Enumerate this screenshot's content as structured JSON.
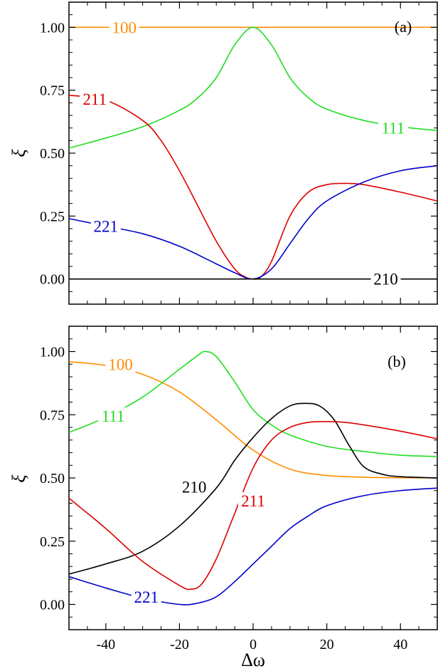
{
  "chart_data": [
    {
      "type": "line",
      "panel_label": "(a)",
      "xlabel": "",
      "ylabel": "ξ",
      "xlim": [
        -50,
        50
      ],
      "ylim": [
        -0.1,
        1.1
      ],
      "xticks": [
        -40,
        -20,
        0,
        20,
        40
      ],
      "yticks": [
        0.0,
        0.25,
        0.5,
        0.75,
        1.0
      ],
      "ytick_labels": [
        "0.00",
        "0.25",
        "0.50",
        "0.75",
        "1.00"
      ],
      "xtick_labels": [],
      "series": [
        {
          "name": "100",
          "color": "#ff8c00",
          "x": [
            -50,
            -40,
            -30,
            -20,
            -10,
            0,
            10,
            20,
            30,
            40,
            50
          ],
          "y": [
            1.0,
            1.0,
            1.0,
            1.0,
            1.0,
            1.0,
            1.0,
            1.0,
            1.0,
            1.0,
            1.0
          ],
          "label_at": [
            -35,
            1.0
          ]
        },
        {
          "name": "111",
          "color": "#22dd22",
          "x": [
            -50,
            -40,
            -30,
            -20,
            -15,
            -10,
            -5,
            0,
            5,
            10,
            15,
            20,
            30,
            40,
            50
          ],
          "y": [
            0.52,
            0.56,
            0.605,
            0.67,
            0.72,
            0.8,
            0.93,
            1.0,
            0.93,
            0.8,
            0.72,
            0.675,
            0.63,
            0.605,
            0.59
          ],
          "label_at": [
            38,
            0.6
          ]
        },
        {
          "name": "211",
          "color": "#dd0000",
          "x": [
            -50,
            -40,
            -30,
            -25,
            -20,
            -15,
            -10,
            -5,
            -2,
            0,
            2,
            5,
            10,
            15,
            20,
            25,
            30,
            40,
            50
          ],
          "y": [
            0.73,
            0.71,
            0.63,
            0.55,
            0.43,
            0.29,
            0.15,
            0.04,
            0.007,
            0.0,
            0.007,
            0.07,
            0.25,
            0.345,
            0.375,
            0.38,
            0.375,
            0.345,
            0.31
          ],
          "label_at": [
            -43,
            0.715
          ]
        },
        {
          "name": "221",
          "color": "#0000cc",
          "x": [
            -50,
            -40,
            -30,
            -20,
            -10,
            -5,
            0,
            5,
            10,
            15,
            20,
            30,
            40,
            50
          ],
          "y": [
            0.24,
            0.21,
            0.18,
            0.13,
            0.06,
            0.025,
            0.0,
            0.04,
            0.14,
            0.24,
            0.31,
            0.385,
            0.43,
            0.45
          ],
          "label_at": [
            -40,
            0.21
          ]
        },
        {
          "name": "210",
          "color": "#000000",
          "x": [
            -50,
            -40,
            -30,
            -20,
            -10,
            0,
            10,
            20,
            30,
            40,
            50
          ],
          "y": [
            0.0,
            0.0,
            0.0,
            0.0,
            0.0,
            0.0,
            0.0,
            0.0,
            0.0,
            0.0,
            0.0
          ],
          "label_at": [
            36,
            0.0
          ]
        }
      ]
    },
    {
      "type": "line",
      "panel_label": "(b)",
      "xlabel": "Δω",
      "ylabel": "ξ",
      "xlim": [
        -50,
        50
      ],
      "ylim": [
        -0.1,
        1.1
      ],
      "xticks": [
        -40,
        -20,
        0,
        20,
        40
      ],
      "xtick_labels": [
        "-40",
        "-20",
        "0",
        "20",
        "40"
      ],
      "yticks": [
        0.0,
        0.25,
        0.5,
        0.75,
        1.0
      ],
      "ytick_labels": [
        "0.00",
        "0.25",
        "0.50",
        "0.75",
        "1.00"
      ],
      "series": [
        {
          "name": "100",
          "color": "#ff8c00",
          "x": [
            -50,
            -40,
            -30,
            -20,
            -10,
            0,
            10,
            20,
            30,
            40,
            50
          ],
          "y": [
            0.96,
            0.945,
            0.91,
            0.84,
            0.73,
            0.61,
            0.535,
            0.51,
            0.503,
            0.501,
            0.5
          ],
          "label_at": [
            -36,
            0.95
          ]
        },
        {
          "name": "111",
          "color": "#22dd22",
          "x": [
            -50,
            -40,
            -30,
            -20,
            -15,
            -13,
            -10,
            -5,
            0,
            5,
            10,
            20,
            30,
            40,
            50
          ],
          "y": [
            0.68,
            0.74,
            0.82,
            0.93,
            0.985,
            1.0,
            0.98,
            0.88,
            0.77,
            0.71,
            0.67,
            0.625,
            0.605,
            0.59,
            0.585
          ],
          "label_at": [
            -38,
            0.745
          ]
        },
        {
          "name": "210",
          "color": "#000000",
          "x": [
            -50,
            -40,
            -30,
            -20,
            -10,
            -5,
            0,
            5,
            10,
            14,
            18,
            22,
            26,
            30,
            35,
            40,
            50
          ],
          "y": [
            0.12,
            0.16,
            0.21,
            0.31,
            0.46,
            0.57,
            0.66,
            0.735,
            0.785,
            0.795,
            0.785,
            0.73,
            0.63,
            0.545,
            0.515,
            0.505,
            0.5
          ],
          "label_at": [
            -16,
            0.465
          ]
        },
        {
          "name": "211",
          "color": "#dd0000",
          "x": [
            -50,
            -40,
            -30,
            -20,
            -17,
            -14,
            -10,
            -5,
            0,
            5,
            10,
            15,
            20,
            25,
            30,
            40,
            50
          ],
          "y": [
            0.42,
            0.3,
            0.17,
            0.075,
            0.06,
            0.08,
            0.18,
            0.36,
            0.54,
            0.65,
            0.7,
            0.72,
            0.723,
            0.72,
            0.71,
            0.685,
            0.655
          ],
          "label_at": [
            0,
            0.41
          ]
        },
        {
          "name": "221",
          "color": "#0000cc",
          "x": [
            -50,
            -40,
            -30,
            -20,
            -15,
            -10,
            -5,
            0,
            5,
            10,
            15,
            20,
            30,
            40,
            50
          ],
          "y": [
            0.11,
            0.065,
            0.025,
            0.0,
            0.005,
            0.03,
            0.09,
            0.16,
            0.23,
            0.3,
            0.35,
            0.39,
            0.43,
            0.45,
            0.46
          ],
          "label_at": [
            -29,
            0.03
          ]
        }
      ]
    }
  ]
}
